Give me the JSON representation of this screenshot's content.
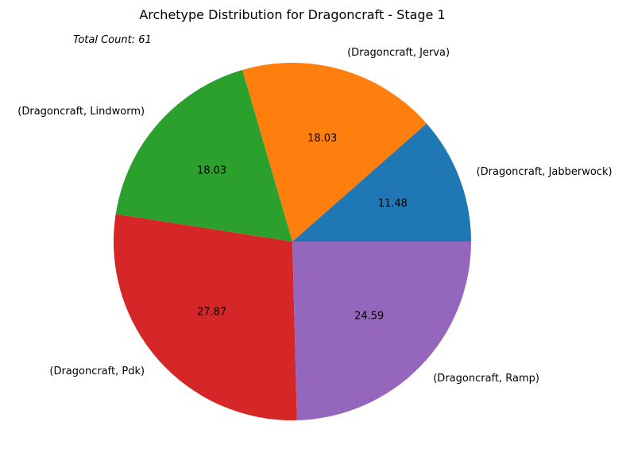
{
  "chart_data": {
    "type": "pie",
    "title": "Archetype Distribution for Dragoncraft - Stage 1",
    "annotation": "Total Count: 61",
    "start_angle_deg": 0,
    "direction": "counterclockwise",
    "slices": [
      {
        "label": "(Dragoncraft, Jabberwock)",
        "value": 11.48,
        "color": "#1f77b4"
      },
      {
        "label": "(Dragoncraft, Jerva)",
        "value": 18.03,
        "color": "#ff7f0e"
      },
      {
        "label": "(Dragoncraft, Lindworm)",
        "value": 18.03,
        "color": "#2ca02c"
      },
      {
        "label": "(Dragoncraft, Pdk)",
        "value": 27.87,
        "color": "#d62728"
      },
      {
        "label": "(Dragoncraft, Ramp)",
        "value": 24.59,
        "color": "#9467bd"
      }
    ]
  }
}
